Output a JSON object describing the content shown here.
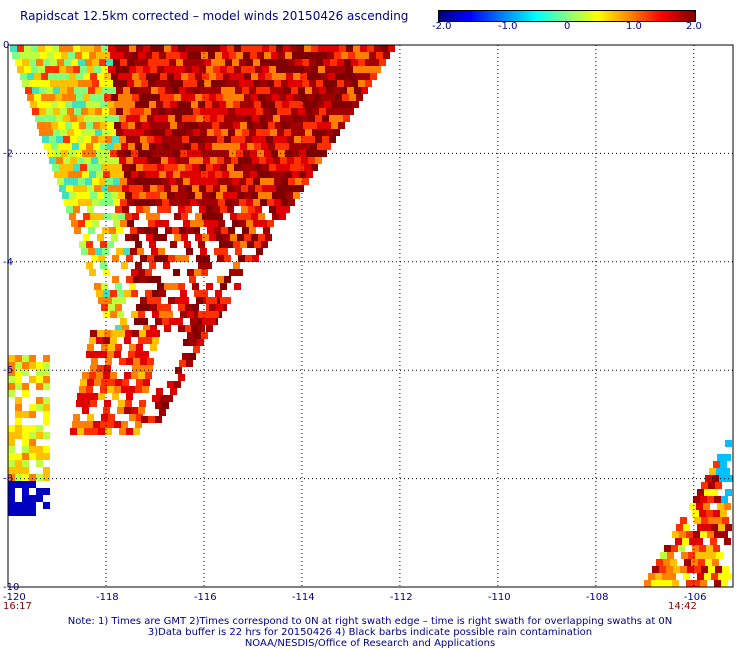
{
  "title": "Rapidscat 12.5km corrected – model winds 20150426 ascending",
  "colorbar": {
    "ticks": [
      "-2.0",
      "-1.0",
      "0",
      "1.0",
      "2.0"
    ],
    "min": -2.0,
    "max": 2.0
  },
  "map": {
    "x_ticks": [
      "-120",
      "-118",
      "-116",
      "-114",
      "-112",
      "-110",
      "-108",
      "-106"
    ],
    "y_ticks": [
      "0",
      "-2",
      "-4",
      "-6",
      "-8",
      "-10"
    ],
    "lon_range": [
      -120,
      -105.2
    ],
    "lat_range": [
      -10,
      0
    ],
    "time_left": "16:17",
    "time_right": "14:42"
  },
  "notes": {
    "line1": "Note: 1) Times are GMT 2)Times correspond to 0N at right swath edge – time is right swath for overlapping swaths at 0N",
    "line2": "3)Data buffer is 22 hrs for 20150426 4) Black barbs indicate possible rain contamination",
    "line3": "NOAA/NESDIS/Office of Research and Applications"
  }
}
